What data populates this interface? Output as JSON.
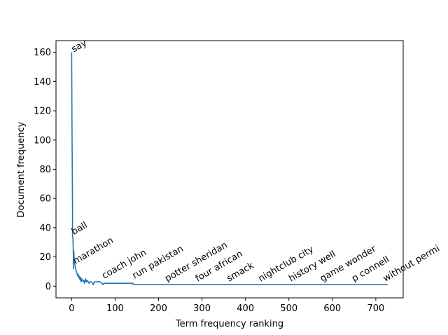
{
  "chart_data": {
    "type": "line",
    "title": "",
    "xlabel": "Term frequency ranking",
    "ylabel": "Document frequency",
    "xlim": [
      -36,
      763
    ],
    "ylim": [
      -8,
      168
    ],
    "xticks": [
      0,
      100,
      200,
      300,
      400,
      500,
      600,
      700
    ],
    "yticks": [
      0,
      20,
      40,
      60,
      80,
      100,
      120,
      140,
      160
    ],
    "grid": false,
    "legend": "none",
    "line_color": "#1f77b4",
    "series": [
      {
        "points": [
          [
            0,
            160
          ],
          [
            1,
            100
          ],
          [
            2,
            55
          ],
          [
            2,
            34
          ],
          [
            3,
            33
          ],
          [
            4,
            20
          ],
          [
            4,
            12
          ],
          [
            5,
            24
          ],
          [
            6,
            18
          ],
          [
            7,
            16
          ],
          [
            8,
            14
          ],
          [
            9,
            12
          ],
          [
            10,
            11
          ],
          [
            11,
            10
          ],
          [
            12,
            9
          ],
          [
            13,
            8
          ],
          [
            14,
            7
          ],
          [
            15,
            8
          ],
          [
            16,
            6
          ],
          [
            17,
            7
          ],
          [
            18,
            5
          ],
          [
            19,
            6
          ],
          [
            20,
            4
          ],
          [
            21,
            6
          ],
          [
            22,
            3
          ],
          [
            23,
            5
          ],
          [
            25,
            4
          ],
          [
            27,
            3
          ],
          [
            28,
            4
          ],
          [
            30,
            2
          ],
          [
            32,
            5
          ],
          [
            34,
            3
          ],
          [
            36,
            4
          ],
          [
            38,
            3
          ],
          [
            40,
            2
          ],
          [
            42,
            3
          ],
          [
            45,
            3
          ],
          [
            48,
            2
          ],
          [
            50,
            1
          ],
          [
            52,
            3
          ],
          [
            55,
            3
          ],
          [
            60,
            3
          ],
          [
            65,
            3
          ],
          [
            70,
            2
          ],
          [
            72,
            1
          ],
          [
            75,
            2
          ],
          [
            80,
            2
          ],
          [
            100,
            2
          ],
          [
            120,
            2
          ],
          [
            141,
            2
          ],
          [
            142,
            1
          ],
          [
            200,
            1
          ],
          [
            300,
            1
          ],
          [
            400,
            1
          ],
          [
            500,
            1
          ],
          [
            600,
            1
          ],
          [
            700,
            1
          ],
          [
            727,
            1
          ]
        ]
      }
    ],
    "annotations": [
      {
        "text": "say",
        "x": 0,
        "y": 160
      },
      {
        "text": "ball",
        "x": 0,
        "y": 35
      },
      {
        "text": "marathon",
        "x": 4,
        "y": 15
      },
      {
        "text": "coach john",
        "x": 70,
        "y": 5
      },
      {
        "text": "run pakistan",
        "x": 140,
        "y": 5
      },
      {
        "text": "potter sheridan",
        "x": 215,
        "y": 3
      },
      {
        "text": "four african",
        "x": 285,
        "y": 3
      },
      {
        "text": "smack",
        "x": 357,
        "y": 3
      },
      {
        "text": "nightclub city",
        "x": 430,
        "y": 3
      },
      {
        "text": "history well",
        "x": 500,
        "y": 3
      },
      {
        "text": "game wonder",
        "x": 572,
        "y": 3
      },
      {
        "text": "p connell",
        "x": 645,
        "y": 3
      },
      {
        "text": "without permi",
        "x": 717,
        "y": 3
      }
    ]
  }
}
